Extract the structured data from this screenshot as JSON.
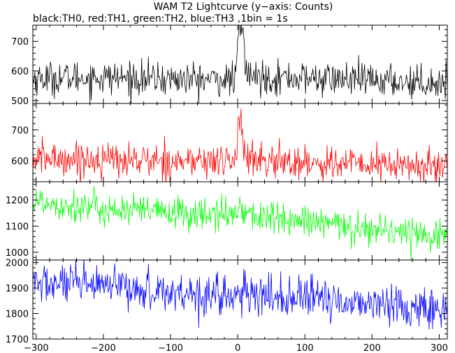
{
  "chart_data": {
    "type": "line",
    "title": "WAM T2 Lightcurve (y−axis: Counts)",
    "subtitle": "black:TH0, red:TH1, green:TH2, blue:TH3 ,1bin = 1s",
    "xlabel": "",
    "ylabel": "",
    "grid": false,
    "xlim": [
      -305,
      312
    ],
    "x_ticks": [
      -300,
      -200,
      -100,
      0,
      100,
      200,
      300
    ],
    "x_tick_labels": [
      "−300",
      "−200",
      "−100",
      "0",
      "100",
      "200",
      "300"
    ],
    "bin_seconds": 1,
    "panels": [
      {
        "series": "TH0",
        "color": "#000000",
        "ylim": [
          490,
          755
        ],
        "y_ticks": [
          500,
          600,
          700
        ],
        "y_tick_labels": [
          "500",
          "600",
          "700"
        ],
        "profile": [
          [
            -300,
            575
          ],
          [
            -200,
            578
          ],
          [
            -100,
            572
          ],
          [
            -10,
            570
          ],
          [
            -2,
            578
          ],
          [
            0,
            720
          ],
          [
            2,
            730
          ],
          [
            5,
            740
          ],
          [
            8,
            735
          ],
          [
            12,
            600
          ],
          [
            20,
            580
          ],
          [
            100,
            575
          ],
          [
            200,
            568
          ],
          [
            300,
            560
          ]
        ],
        "noise": 28
      },
      {
        "series": "TH1",
        "color": "#ff0000",
        "ylim": [
          533,
          785
        ],
        "y_ticks": [
          600,
          700
        ],
        "y_tick_labels": [
          "600",
          "700"
        ],
        "profile": [
          [
            -300,
            608
          ],
          [
            -200,
            605
          ],
          [
            -100,
            600
          ],
          [
            -10,
            598
          ],
          [
            -2,
            605
          ],
          [
            0,
            700
          ],
          [
            2,
            750
          ],
          [
            5,
            720
          ],
          [
            8,
            680
          ],
          [
            12,
            610
          ],
          [
            20,
            600
          ],
          [
            100,
            595
          ],
          [
            200,
            588
          ],
          [
            300,
            580
          ]
        ],
        "noise": 28
      },
      {
        "series": "TH2",
        "color": "#00ff00",
        "ylim": [
          970,
          1270
        ],
        "y_ticks": [
          1000,
          1100,
          1200
        ],
        "y_tick_labels": [
          "1000",
          "1100",
          "1200"
        ],
        "profile": [
          [
            -300,
            1195
          ],
          [
            -200,
            1165
          ],
          [
            -100,
            1150
          ],
          [
            -10,
            1140
          ],
          [
            -2,
            1150
          ],
          [
            0,
            1200
          ],
          [
            3,
            1185
          ],
          [
            8,
            1160
          ],
          [
            20,
            1140
          ],
          [
            100,
            1115
          ],
          [
            200,
            1090
          ],
          [
            300,
            1065
          ]
        ],
        "noise": 32
      },
      {
        "series": "TH3",
        "color": "#0000ff",
        "ylim": [
          1700,
          2010
        ],
        "y_ticks": [
          1700,
          1800,
          1900,
          2000
        ],
        "y_tick_labels": [
          "1700",
          "1800",
          "1900",
          "2000"
        ],
        "profile": [
          [
            -300,
            1920
          ],
          [
            -200,
            1905
          ],
          [
            -100,
            1885
          ],
          [
            0,
            1870
          ],
          [
            100,
            1860
          ],
          [
            200,
            1840
          ],
          [
            300,
            1815
          ]
        ],
        "noise": 40
      }
    ]
  }
}
